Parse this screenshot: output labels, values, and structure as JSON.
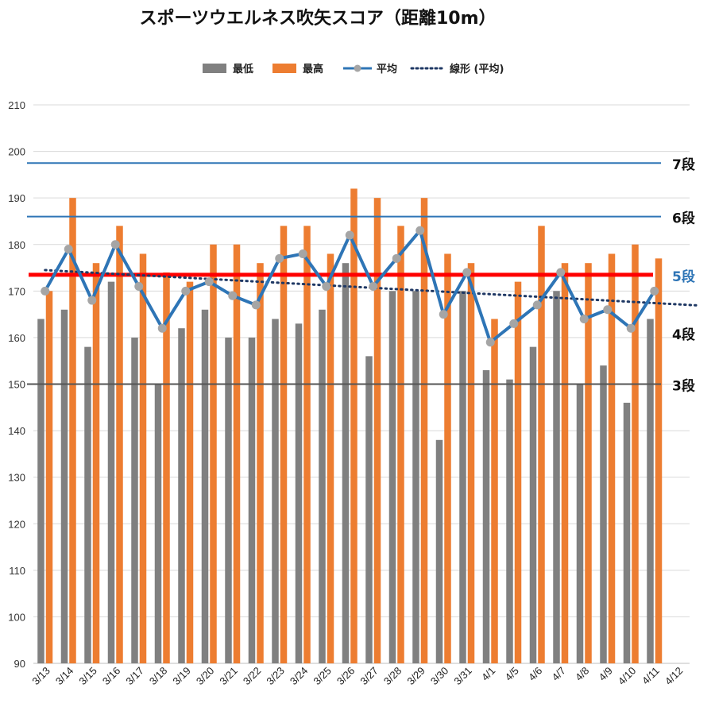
{
  "chart_data": {
    "type": "bar",
    "title": "スポーツウエルネス吹矢スコア（距離10m）",
    "ylim": [
      90,
      210
    ],
    "yticks": [
      90,
      100,
      110,
      120,
      130,
      140,
      150,
      160,
      170,
      180,
      190,
      200,
      210
    ],
    "grid": true,
    "legend_position": "top",
    "categories": [
      "3/13",
      "3/14",
      "3/15",
      "3/16",
      "3/17",
      "3/18",
      "3/19",
      "3/20",
      "3/21",
      "3/22",
      "3/23",
      "3/24",
      "3/25",
      "3/26",
      "3/27",
      "3/28",
      "3/29",
      "3/30",
      "3/31",
      "4/1",
      "4/5",
      "4/6",
      "4/7",
      "4/8",
      "4/9",
      "4/10",
      "4/11",
      "4/12"
    ],
    "series": [
      {
        "name": "最低",
        "type": "bar",
        "color": "#808080",
        "values": [
          164,
          166,
          158,
          172,
          160,
          150,
          162,
          166,
          160,
          160,
          164,
          163,
          166,
          176,
          156,
          170,
          170,
          138,
          170,
          153,
          151,
          158,
          170,
          150,
          154,
          146,
          164,
          null
        ]
      },
      {
        "name": "最高",
        "type": "bar",
        "color": "#ED7D31",
        "values": [
          170,
          190,
          176,
          184,
          178,
          174,
          172,
          180,
          180,
          176,
          184,
          184,
          178,
          192,
          190,
          184,
          190,
          178,
          176,
          164,
          172,
          184,
          176,
          176,
          178,
          180,
          177,
          null
        ]
      },
      {
        "name": "平均",
        "type": "line",
        "color": "#2E75B6",
        "marker_color": "#A5A5A5",
        "values": [
          170,
          179,
          168,
          180,
          171,
          162,
          170,
          172,
          169,
          167,
          177,
          178,
          171,
          182,
          171,
          177,
          183,
          165,
          174,
          159,
          163,
          167,
          174,
          164,
          166,
          162,
          170,
          null
        ]
      },
      {
        "name": "線形 (平均)",
        "type": "trendline",
        "color": "#1F3864",
        "style": "dotted",
        "start": [
          0,
          174.5
        ],
        "end": [
          27.3,
          167.0
        ]
      }
    ],
    "reference_lines": [
      {
        "label": "7段",
        "value": 197.5,
        "color": "#2E75B6",
        "label_color": "#111111"
      },
      {
        "label": "6段",
        "value": 186,
        "color": "#2E75B6",
        "label_color": "#111111"
      },
      {
        "label": "5段",
        "value": 173.5,
        "color": "#FF0000",
        "label_color": "#2E75B6"
      },
      {
        "label": "4段",
        "value": null,
        "color": null,
        "label_color": "#111111"
      },
      {
        "label": "3段",
        "value": 150,
        "color": "#555555",
        "label_color": "#111111"
      }
    ]
  }
}
